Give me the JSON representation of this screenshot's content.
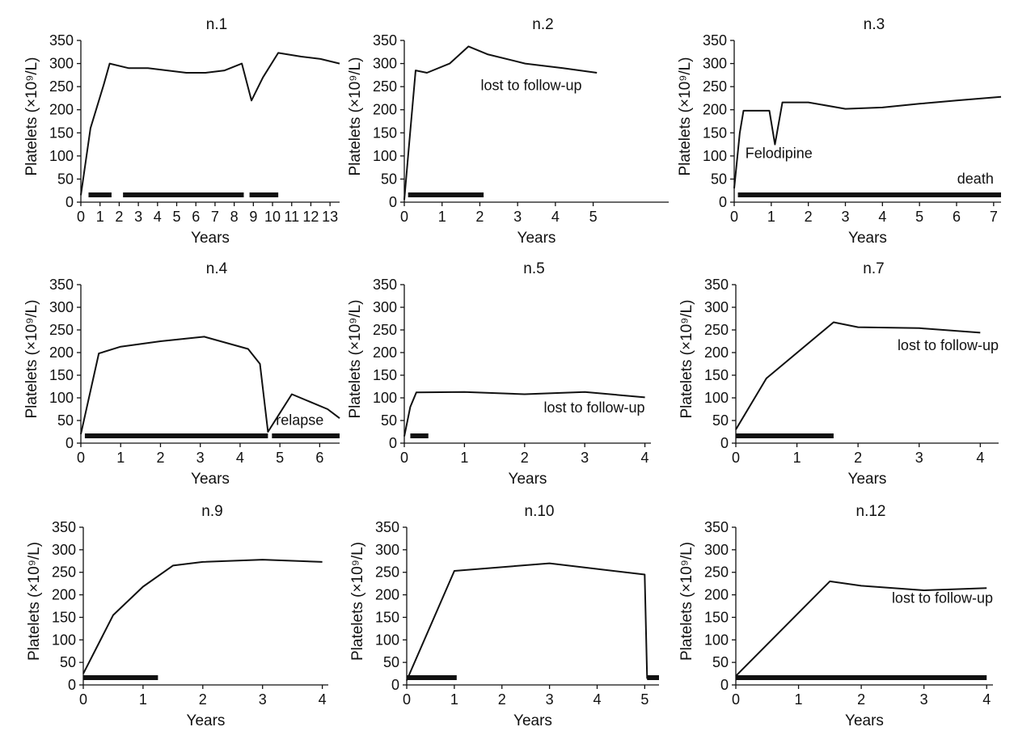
{
  "chart_data": [
    {
      "type": "line",
      "title": "n.1",
      "xlabel": "Years",
      "ylabel": "Platelets (×10⁹/L)",
      "ylim": [
        0,
        350
      ],
      "xlim": [
        0,
        13.5
      ],
      "x_ticks": [
        0,
        1,
        2,
        3,
        4,
        5,
        6,
        7,
        8,
        9,
        10,
        11,
        12,
        13
      ],
      "x_tick_labels": [
        "0",
        "1",
        "2",
        "3",
        "4",
        "5",
        "6",
        "7",
        "8",
        "9",
        "10",
        "11",
        "12",
        "13"
      ],
      "y_ticks": [
        0,
        50,
        100,
        150,
        200,
        250,
        300,
        350
      ],
      "y_tick_labels": [
        "0",
        "50",
        "100",
        "150",
        "200",
        "250",
        "300",
        "350"
      ],
      "series": [
        {
          "x": [
            0,
            0.5,
            1.2,
            1.5,
            2.5,
            3.5,
            5.5,
            6.5,
            7.5,
            8.4,
            8.9,
            9.5,
            10.3,
            11.5,
            12.5,
            13.5
          ],
          "y": [
            15,
            160,
            255,
            300,
            290,
            290,
            280,
            280,
            285,
            300,
            220,
            270,
            323,
            315,
            310,
            300
          ]
        }
      ],
      "treatment_bars": [
        [
          0.4,
          1.6
        ],
        [
          2.2,
          8.5
        ],
        [
          8.8,
          10.3
        ]
      ],
      "annotations": []
    },
    {
      "type": "line",
      "title": "n.2",
      "xlabel": "Years",
      "ylabel": "Platelets (×10⁹/L)",
      "ylim": [
        0,
        350
      ],
      "xlim": [
        0,
        7
      ],
      "x_ticks": [
        0,
        1,
        2,
        3,
        4,
        5
      ],
      "x_tick_labels": [
        "0",
        "1",
        "2",
        "3",
        "4",
        "5"
      ],
      "y_ticks": [
        0,
        50,
        100,
        150,
        200,
        250,
        300,
        350
      ],
      "y_tick_labels": [
        "0",
        "50",
        "100",
        "150",
        "200",
        "250",
        "300",
        "350"
      ],
      "series": [
        {
          "x": [
            0,
            0.1,
            0.3,
            0.6,
            1.2,
            1.7,
            2.2,
            3.2,
            4.2,
            5.1
          ],
          "y": [
            5,
            100,
            285,
            280,
            300,
            337,
            320,
            300,
            290,
            280
          ]
        }
      ],
      "treatment_bars": [
        [
          0.1,
          2.1
        ]
      ],
      "annotations": [
        {
          "text": "lost to follow-up",
          "x": 4.7,
          "y": 242
        }
      ]
    },
    {
      "type": "line",
      "title": "n.3",
      "xlabel": "Years",
      "ylabel": "Platelets (×10⁹/L)",
      "ylim": [
        0,
        350
      ],
      "xlim": [
        0,
        7.2
      ],
      "x_ticks": [
        0,
        1,
        2,
        3,
        4,
        5,
        6,
        7
      ],
      "x_tick_labels": [
        "0",
        "1",
        "2",
        "3",
        "4",
        "5",
        "6",
        "7"
      ],
      "y_ticks": [
        0,
        50,
        100,
        150,
        200,
        250,
        300,
        350
      ],
      "y_tick_labels": [
        "0",
        "50",
        "100",
        "150",
        "200",
        "250",
        "300",
        "350"
      ],
      "series": [
        {
          "x": [
            0,
            0.15,
            0.25,
            0.95,
            1.1,
            1.3,
            2.0,
            3.0,
            4.0,
            5.0,
            6.0,
            7.2
          ],
          "y": [
            30,
            150,
            198,
            198,
            125,
            216,
            216,
            202,
            205,
            213,
            220,
            228
          ]
        }
      ],
      "treatment_bars": [
        [
          0.1,
          7.2
        ]
      ],
      "annotations": [
        {
          "text": "Felodipine",
          "x": 0.3,
          "y": 95
        },
        {
          "text": "death",
          "x": 7.0,
          "y": 40
        }
      ]
    },
    {
      "type": "line",
      "title": "n.4",
      "xlabel": "Years",
      "ylabel": "Platelets (×10⁹/L)",
      "ylim": [
        0,
        350
      ],
      "xlim": [
        0,
        6.5
      ],
      "x_ticks": [
        0,
        1,
        2,
        3,
        4,
        5,
        6
      ],
      "x_tick_labels": [
        "0",
        "1",
        "2",
        "3",
        "4",
        "5",
        "6"
      ],
      "y_ticks": [
        0,
        50,
        100,
        150,
        200,
        250,
        300,
        350
      ],
      "y_tick_labels": [
        "0",
        "50",
        "100",
        "150",
        "200",
        "250",
        "300",
        "350"
      ],
      "series": [
        {
          "x": [
            0,
            0.45,
            1.0,
            2.0,
            3.1,
            4.2,
            4.5,
            4.7,
            5.3,
            6.2,
            6.5
          ],
          "y": [
            20,
            198,
            213,
            225,
            235,
            208,
            175,
            25,
            108,
            75,
            55
          ]
        }
      ],
      "treatment_bars": [
        [
          0.1,
          4.7
        ],
        [
          4.8,
          6.5
        ]
      ],
      "annotations": [
        {
          "text": "relapse",
          "x": 4.9,
          "y": 40
        }
      ]
    },
    {
      "type": "line",
      "title": "n.5",
      "xlabel": "Years",
      "ylabel": "Platelets (×10⁹/L)",
      "ylim": [
        0,
        350
      ],
      "xlim": [
        0,
        4.1
      ],
      "x_ticks": [
        0,
        1,
        2,
        3,
        4
      ],
      "x_tick_labels": [
        "0",
        "1",
        "2",
        "3",
        "4"
      ],
      "y_ticks": [
        0,
        50,
        100,
        150,
        200,
        250,
        300,
        350
      ],
      "y_tick_labels": [
        "0",
        "50",
        "100",
        "150",
        "200",
        "250",
        "300",
        "350"
      ],
      "series": [
        {
          "x": [
            0,
            0.1,
            0.2,
            1.0,
            2.0,
            3.0,
            4.0
          ],
          "y": [
            15,
            80,
            112,
            113,
            108,
            113,
            101
          ]
        }
      ],
      "treatment_bars": [
        [
          0.1,
          0.4
        ]
      ],
      "annotations": [
        {
          "text": "lost to follow-up",
          "x": 4.0,
          "y": 68
        }
      ]
    },
    {
      "type": "line",
      "title": "n.7",
      "xlabel": "Years",
      "ylabel": "Platelets (×10⁹/L)",
      "ylim": [
        0,
        350
      ],
      "xlim": [
        0,
        4.3
      ],
      "x_ticks": [
        0,
        1,
        2,
        3,
        4
      ],
      "x_tick_labels": [
        "0",
        "1",
        "2",
        "3",
        "4"
      ],
      "y_ticks": [
        0,
        50,
        100,
        150,
        200,
        250,
        300,
        350
      ],
      "y_tick_labels": [
        "0",
        "50",
        "100",
        "150",
        "200",
        "250",
        "300",
        "350"
      ],
      "series": [
        {
          "x": [
            0,
            0.5,
            1.6,
            2.0,
            3.0,
            4.0
          ],
          "y": [
            30,
            143,
            267,
            256,
            254,
            244
          ]
        }
      ],
      "treatment_bars": [
        [
          0,
          1.6
        ]
      ],
      "annotations": [
        {
          "text": "lost to follow-up",
          "x": 4.3,
          "y": 205
        }
      ]
    },
    {
      "type": "line",
      "title": "n.9",
      "xlabel": "Years",
      "ylabel": "Platelets (×10⁹/L)",
      "ylim": [
        0,
        350
      ],
      "xlim": [
        0,
        4.1
      ],
      "x_ticks": [
        0,
        1,
        2,
        3,
        4
      ],
      "x_tick_labels": [
        "0",
        "1",
        "2",
        "3",
        "4"
      ],
      "y_ticks": [
        0,
        50,
        100,
        150,
        200,
        250,
        300,
        350
      ],
      "y_tick_labels": [
        "0",
        "50",
        "100",
        "150",
        "200",
        "250",
        "300",
        "350"
      ],
      "series": [
        {
          "x": [
            0,
            0.5,
            1.0,
            1.5,
            2.0,
            3.0,
            4.0
          ],
          "y": [
            25,
            155,
            218,
            265,
            273,
            278,
            273
          ]
        }
      ],
      "treatment_bars": [
        [
          0,
          1.25
        ]
      ],
      "annotations": []
    },
    {
      "type": "line",
      "title": "n.10",
      "xlabel": "Years",
      "ylabel": "Platelets (×10⁹/L)",
      "ylim": [
        0,
        350
      ],
      "xlim": [
        0,
        5.3
      ],
      "x_ticks": [
        0,
        1,
        2,
        3,
        4,
        5
      ],
      "x_tick_labels": [
        "0",
        "1",
        "2",
        "3",
        "4",
        "5"
      ],
      "y_ticks": [
        0,
        50,
        100,
        150,
        200,
        250,
        300,
        350
      ],
      "y_tick_labels": [
        "0",
        "50",
        "100",
        "150",
        "200",
        "250",
        "300",
        "350"
      ],
      "series": [
        {
          "x": [
            0,
            1.0,
            3.0,
            5.0,
            5.05,
            5.3
          ],
          "y": [
            10,
            253,
            270,
            245,
            15,
            15
          ]
        }
      ],
      "treatment_bars": [
        [
          0,
          1.05
        ],
        [
          5.05,
          5.3
        ]
      ],
      "annotations": []
    },
    {
      "type": "line",
      "title": "n.12",
      "xlabel": "Years",
      "ylabel": "Platelets (×10⁹/L)",
      "ylim": [
        0,
        350
      ],
      "xlim": [
        0,
        4.1
      ],
      "x_ticks": [
        0,
        1,
        2,
        3,
        4
      ],
      "x_tick_labels": [
        "0",
        "1",
        "2",
        "3",
        "4"
      ],
      "y_ticks": [
        0,
        50,
        100,
        150,
        200,
        250,
        300,
        350
      ],
      "y_tick_labels": [
        "0",
        "50",
        "100",
        "150",
        "200",
        "250",
        "300",
        "350"
      ],
      "series": [
        {
          "x": [
            0,
            1.5,
            2.0,
            3.0,
            4.0
          ],
          "y": [
            20,
            230,
            220,
            210,
            215
          ]
        }
      ],
      "treatment_bars": [
        [
          0,
          4.0
        ]
      ],
      "annotations": [
        {
          "text": "lost to follow-up",
          "x": 4.1,
          "y": 182
        }
      ]
    }
  ]
}
